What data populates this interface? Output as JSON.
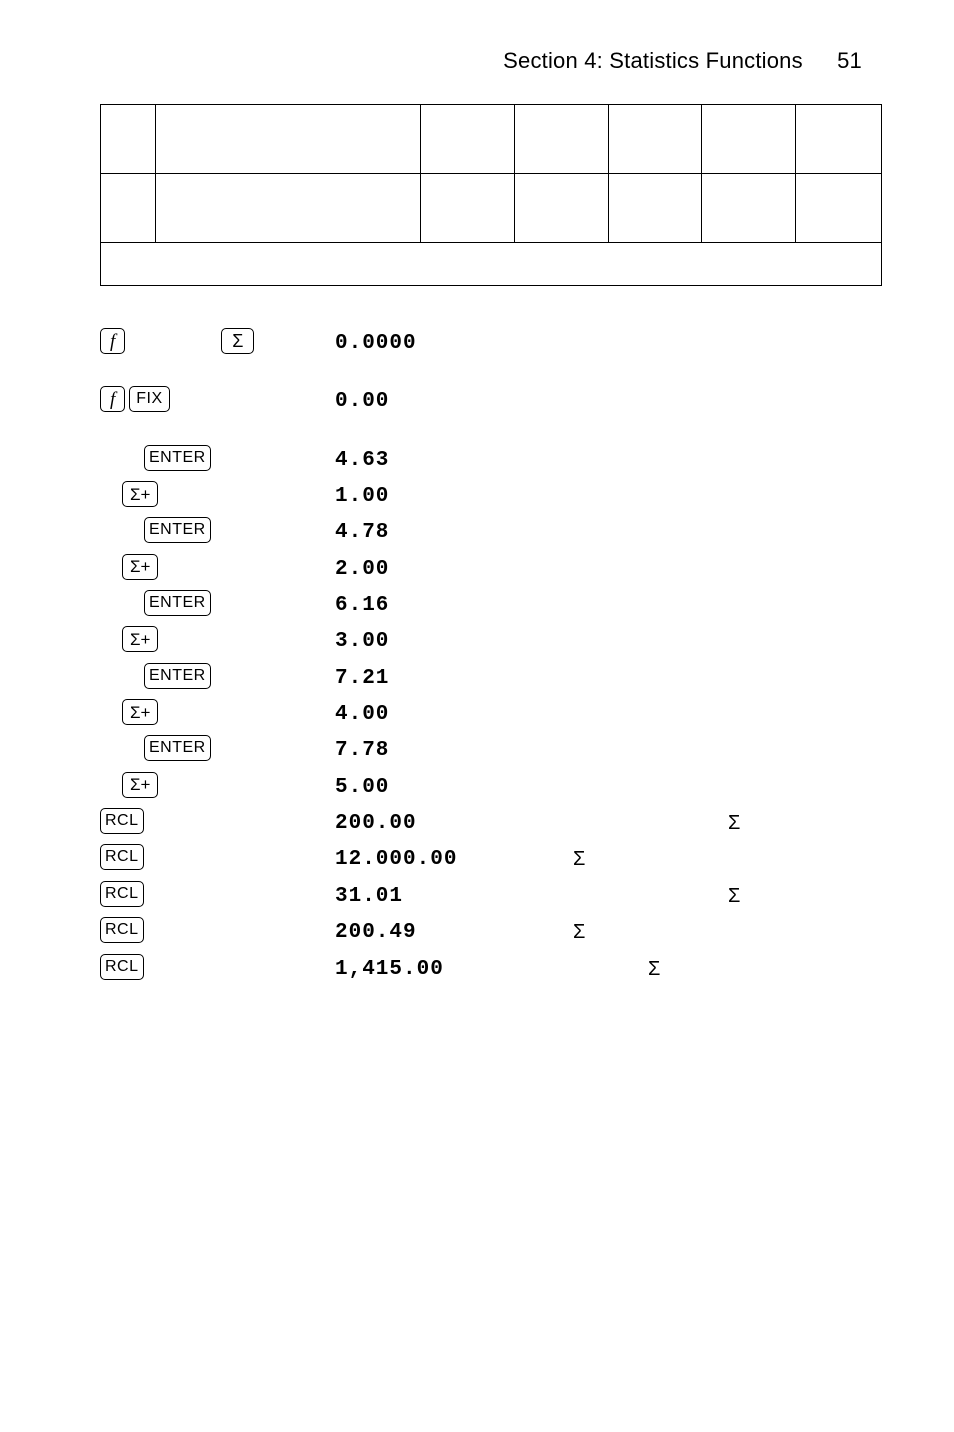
{
  "header": {
    "section": "Section 4: Statistics Functions",
    "pageno": "51"
  },
  "rows": [
    {
      "type": "gap",
      "keys": [
        {
          "k": "f",
          "cls": "serif"
        },
        {
          "k": "spacer"
        },
        {
          "k": "Σ",
          "cls": "sigma-on"
        }
      ],
      "display": "0.0000"
    },
    {
      "type": "gap",
      "keys": [
        {
          "k": "f",
          "cls": "serif"
        },
        {
          "k": "FIX",
          "cls": "fix"
        }
      ],
      "lead": "",
      "display": "0.00"
    },
    {
      "type": "",
      "lead": "",
      "keys": [
        {
          "k": "ENTER",
          "cls": "enter",
          "pre": ""
        }
      ],
      "display": "4.63",
      "preindent": 1
    },
    {
      "type": "",
      "lead": "",
      "keys": [
        {
          "k": "Σ+",
          "cls": "sym"
        }
      ],
      "display": "1.00",
      "preindent": 0.5
    },
    {
      "type": "",
      "lead": "",
      "keys": [
        {
          "k": "ENTER",
          "cls": "enter"
        }
      ],
      "display": "4.78",
      "preindent": 1
    },
    {
      "type": "",
      "lead": "",
      "keys": [
        {
          "k": "Σ+",
          "cls": "sym"
        }
      ],
      "display": "2.00",
      "preindent": 0.5
    },
    {
      "type": "",
      "lead": "",
      "keys": [
        {
          "k": "ENTER",
          "cls": "enter"
        }
      ],
      "display": "6.16",
      "preindent": 1
    },
    {
      "type": "",
      "lead": "",
      "keys": [
        {
          "k": "Σ+",
          "cls": "sym"
        }
      ],
      "display": "3.00",
      "preindent": 0.5
    },
    {
      "type": "",
      "lead": "",
      "keys": [
        {
          "k": "ENTER",
          "cls": "enter"
        }
      ],
      "display": "7.21",
      "preindent": 1
    },
    {
      "type": "",
      "lead": "",
      "keys": [
        {
          "k": "Σ+",
          "cls": "sym"
        }
      ],
      "display": "4.00",
      "preindent": 0.5
    },
    {
      "type": "",
      "lead": "",
      "keys": [
        {
          "k": "ENTER",
          "cls": "enter"
        }
      ],
      "display": "7.78",
      "preindent": 1
    },
    {
      "type": "",
      "lead": "",
      "keys": [
        {
          "k": "Σ+",
          "cls": "sym"
        }
      ],
      "display": "5.00",
      "preindent": 0.5
    },
    {
      "type": "",
      "keys": [
        {
          "k": "RCL",
          "cls": "rcl"
        }
      ],
      "display": "200.00",
      "comment": "Σ",
      "commentPad": 205
    },
    {
      "type": "",
      "keys": [
        {
          "k": "RCL",
          "cls": "rcl"
        }
      ],
      "display": "12.000.00",
      "comment": "Σ",
      "commentPad": 50
    },
    {
      "type": "",
      "keys": [
        {
          "k": "RCL",
          "cls": "rcl"
        }
      ],
      "display": "31.01",
      "comment": "Σ",
      "commentPad": 205
    },
    {
      "type": "",
      "keys": [
        {
          "k": "RCL",
          "cls": "rcl"
        }
      ],
      "display": "200.49",
      "comment": "Σ",
      "commentPad": 50
    },
    {
      "type": "",
      "keys": [
        {
          "k": "RCL",
          "cls": "rcl"
        }
      ],
      "display": "1,415.00",
      "comment": "Σ",
      "commentPad": 125
    }
  ]
}
